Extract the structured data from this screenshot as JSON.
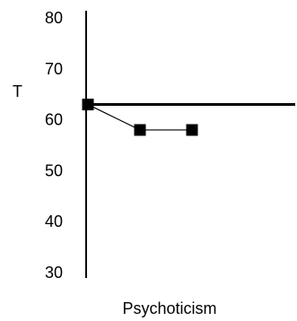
{
  "chart_data": {
    "type": "line",
    "title": "",
    "xlabel": "Psychoticism",
    "ylabel": "T",
    "ylim": [
      30,
      80
    ],
    "yticks": [
      30,
      40,
      50,
      60,
      70,
      80
    ],
    "x": [
      1,
      2,
      3
    ],
    "xlim": [
      1,
      5
    ],
    "reference_line": {
      "y": 63,
      "label": ""
    },
    "series": [
      {
        "values": [
          63,
          58,
          58
        ]
      }
    ],
    "grid": false,
    "legend": "none",
    "colors": {
      "line": "#000000",
      "marker": "#000000",
      "axis": "#000000",
      "background": "#ffffff"
    },
    "marker_shape": "square"
  }
}
